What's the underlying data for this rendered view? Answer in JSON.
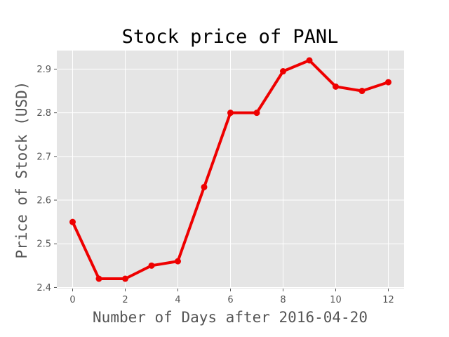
{
  "chart_data": {
    "type": "line",
    "title": "Stock price of PANL",
    "xlabel": "Number of Days after 2016-04-20",
    "ylabel": "Price of Stock (USD)",
    "x": [
      0,
      1,
      2,
      3,
      4,
      5,
      6,
      7,
      8,
      9,
      10,
      11,
      12
    ],
    "series": [
      {
        "values": [
          2.55,
          2.42,
          2.42,
          2.45,
          2.46,
          2.63,
          2.8,
          2.8,
          2.895,
          2.92,
          2.86,
          2.85,
          2.87
        ]
      }
    ],
    "xlim": [
      -0.6,
      12.6
    ],
    "ylim": [
      2.3975,
      2.9425
    ],
    "xticks": [
      "0",
      "2",
      "4",
      "6",
      "8",
      "10",
      "12"
    ],
    "yticks": [
      "2.4",
      "2.5",
      "2.6",
      "2.7",
      "2.8",
      "2.9"
    ],
    "grid": true,
    "line_color": "#ee0000",
    "plot_background": "#e5e5e5",
    "grid_color": "#ffffff"
  }
}
